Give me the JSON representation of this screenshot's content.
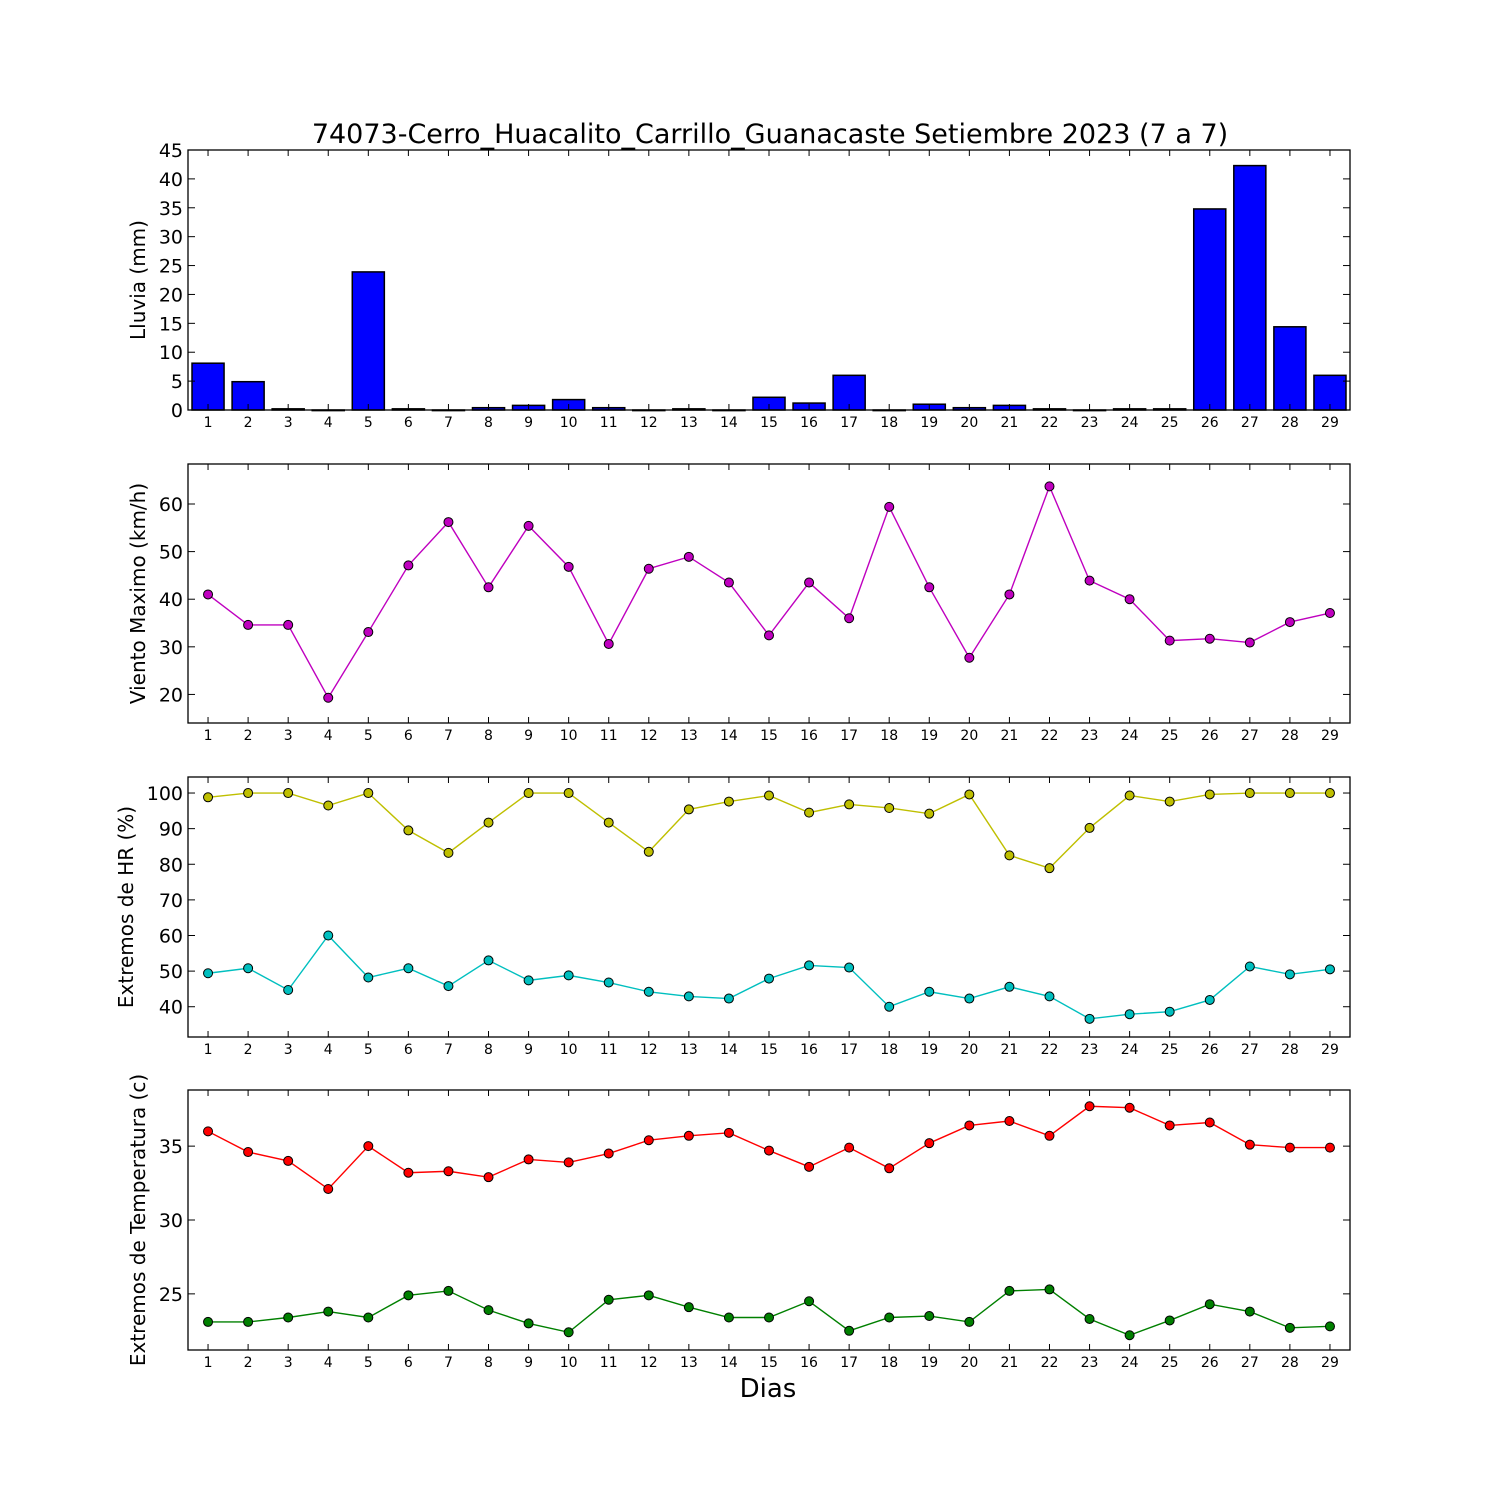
{
  "chart_data": {
    "title": "74073-Cerro_Huacalito_Carrillo_Guanacaste Setiembre 2023  (7 a 7)",
    "xlabel": "Dias",
    "x": [
      1,
      2,
      3,
      4,
      5,
      6,
      7,
      8,
      9,
      10,
      11,
      12,
      13,
      14,
      15,
      16,
      17,
      18,
      19,
      20,
      21,
      22,
      23,
      24,
      25,
      26,
      27,
      28,
      29
    ],
    "panels": [
      {
        "type": "bar",
        "ylabel": "Lluvia (mm)",
        "ylim": [
          0,
          45
        ],
        "yticks": [
          0,
          5,
          10,
          15,
          20,
          25,
          30,
          35,
          40,
          45
        ],
        "series": [
          {
            "color": "#0000ff",
            "values": [
              8.1,
              4.9,
              0.2,
              0,
              23.9,
              0.2,
              0,
              0.4,
              0.8,
              1.8,
              0.4,
              0,
              0.2,
              0,
              2.2,
              1.2,
              6.0,
              0,
              1.0,
              0.4,
              0.8,
              0.2,
              0,
              0.2,
              0.2,
              34.8,
              42.3,
              14.4,
              6.0
            ]
          }
        ]
      },
      {
        "type": "line",
        "ylabel": "Viento Maximo (km/h)",
        "ylim": [
          14,
          68.4
        ],
        "yticks": [
          20,
          30,
          40,
          50,
          60
        ],
        "series": [
          {
            "color": "#bf00bf",
            "values": [
              41.0,
              34.6,
              34.6,
              19.3,
              33.1,
              47.1,
              56.2,
              42.5,
              55.4,
              46.8,
              30.6,
              46.4,
              48.9,
              43.5,
              32.4,
              43.5,
              36.0,
              59.4,
              42.5,
              27.7,
              41.0,
              63.7,
              43.9,
              40.0,
              31.3,
              31.7,
              30.9,
              35.2,
              37.1
            ]
          }
        ]
      },
      {
        "type": "line",
        "ylabel": "Extremos de HR (%)",
        "ylim": [
          31.5,
          104.5
        ],
        "yticks": [
          40,
          50,
          60,
          70,
          80,
          90,
          100
        ],
        "series": [
          {
            "color": "#bfbf00",
            "values": [
              98.8,
              100,
              100,
              96.5,
              100,
              89.5,
              83.2,
              91.7,
              100,
              100,
              91.7,
              83.5,
              95.4,
              97.6,
              99.3,
              94.5,
              96.8,
              95.8,
              94.2,
              99.6,
              82.5,
              78.9,
              90.2,
              99.3,
              97.6,
              99.6,
              100,
              100,
              100
            ]
          },
          {
            "color": "#00bfbf",
            "values": [
              49.4,
              50.8,
              44.7,
              60.0,
              48.2,
              50.8,
              45.8,
              53.0,
              47.4,
              48.8,
              46.8,
              44.2,
              42.9,
              42.3,
              47.9,
              51.6,
              51.0,
              40.0,
              44.2,
              42.3,
              45.6,
              42.9,
              36.6,
              37.9,
              38.6,
              41.9,
              51.3,
              49.1,
              50.5
            ]
          }
        ]
      },
      {
        "type": "line",
        "ylabel": "Extremos de Temperatura (c)",
        "ylim": [
          21.2,
          38.8
        ],
        "yticks": [
          25,
          30,
          35
        ],
        "series": [
          {
            "color": "#ff0000",
            "values": [
              36.0,
              34.6,
              34.0,
              32.1,
              35.0,
              33.2,
              33.3,
              32.9,
              34.1,
              33.9,
              34.5,
              35.4,
              35.7,
              35.9,
              34.7,
              33.6,
              34.9,
              33.5,
              35.2,
              36.4,
              36.7,
              35.7,
              37.7,
              37.6,
              36.4,
              36.6,
              35.1,
              34.9,
              34.9
            ]
          },
          {
            "color": "#008000",
            "values": [
              23.1,
              23.1,
              23.4,
              23.8,
              23.4,
              24.9,
              25.2,
              23.9,
              23.0,
              22.4,
              24.6,
              24.9,
              24.1,
              23.4,
              23.4,
              24.5,
              22.5,
              23.4,
              23.5,
              23.1,
              25.2,
              25.3,
              23.3,
              22.2,
              23.2,
              24.3,
              23.8,
              22.7,
              22.8
            ]
          }
        ]
      }
    ]
  }
}
